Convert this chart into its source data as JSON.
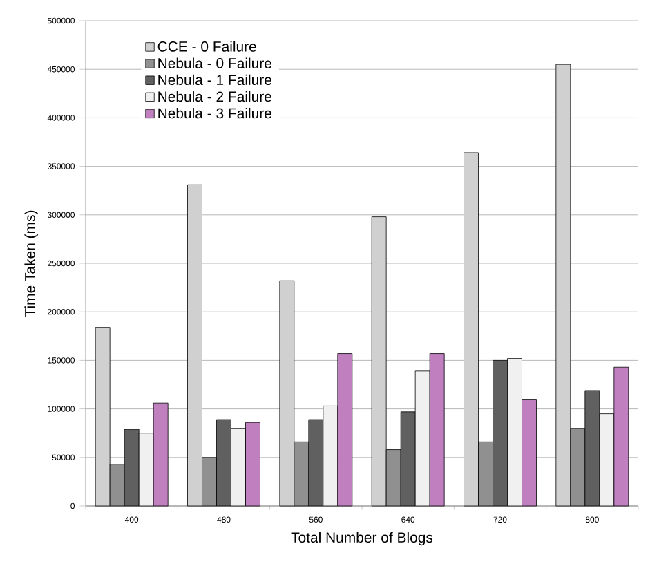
{
  "chart_data": {
    "type": "bar",
    "xlabel": "Total Number of Blogs",
    "ylabel": "Time Taken (ms)",
    "categories": [
      "400",
      "480",
      "560",
      "640",
      "720",
      "800"
    ],
    "series": [
      {
        "name": "CCE - 0 Failure",
        "color": "#d0d0d0",
        "values": [
          184000,
          331000,
          232000,
          298000,
          364000,
          455000
        ]
      },
      {
        "name": "Nebula - 0 Failure",
        "color": "#909090",
        "values": [
          43000,
          50000,
          66000,
          58000,
          66000,
          80000
        ]
      },
      {
        "name": "Nebula - 1 Failure",
        "color": "#606060",
        "values": [
          79000,
          89000,
          89000,
          97000,
          150000,
          119000
        ]
      },
      {
        "name": "Nebula - 2 Failure",
        "color": "#f0f0f0",
        "values": [
          75000,
          80000,
          103000,
          139000,
          152000,
          95000
        ]
      },
      {
        "name": "Nebula - 3 Failure",
        "color": "#c080c0",
        "values": [
          106000,
          86000,
          157000,
          157000,
          110000,
          143000
        ]
      }
    ],
    "ylim": [
      0,
      500000
    ],
    "yticks": [
      0,
      50000,
      100000,
      150000,
      200000,
      250000,
      300000,
      350000,
      400000,
      450000,
      500000
    ],
    "grid": "y",
    "legend": "top left"
  }
}
